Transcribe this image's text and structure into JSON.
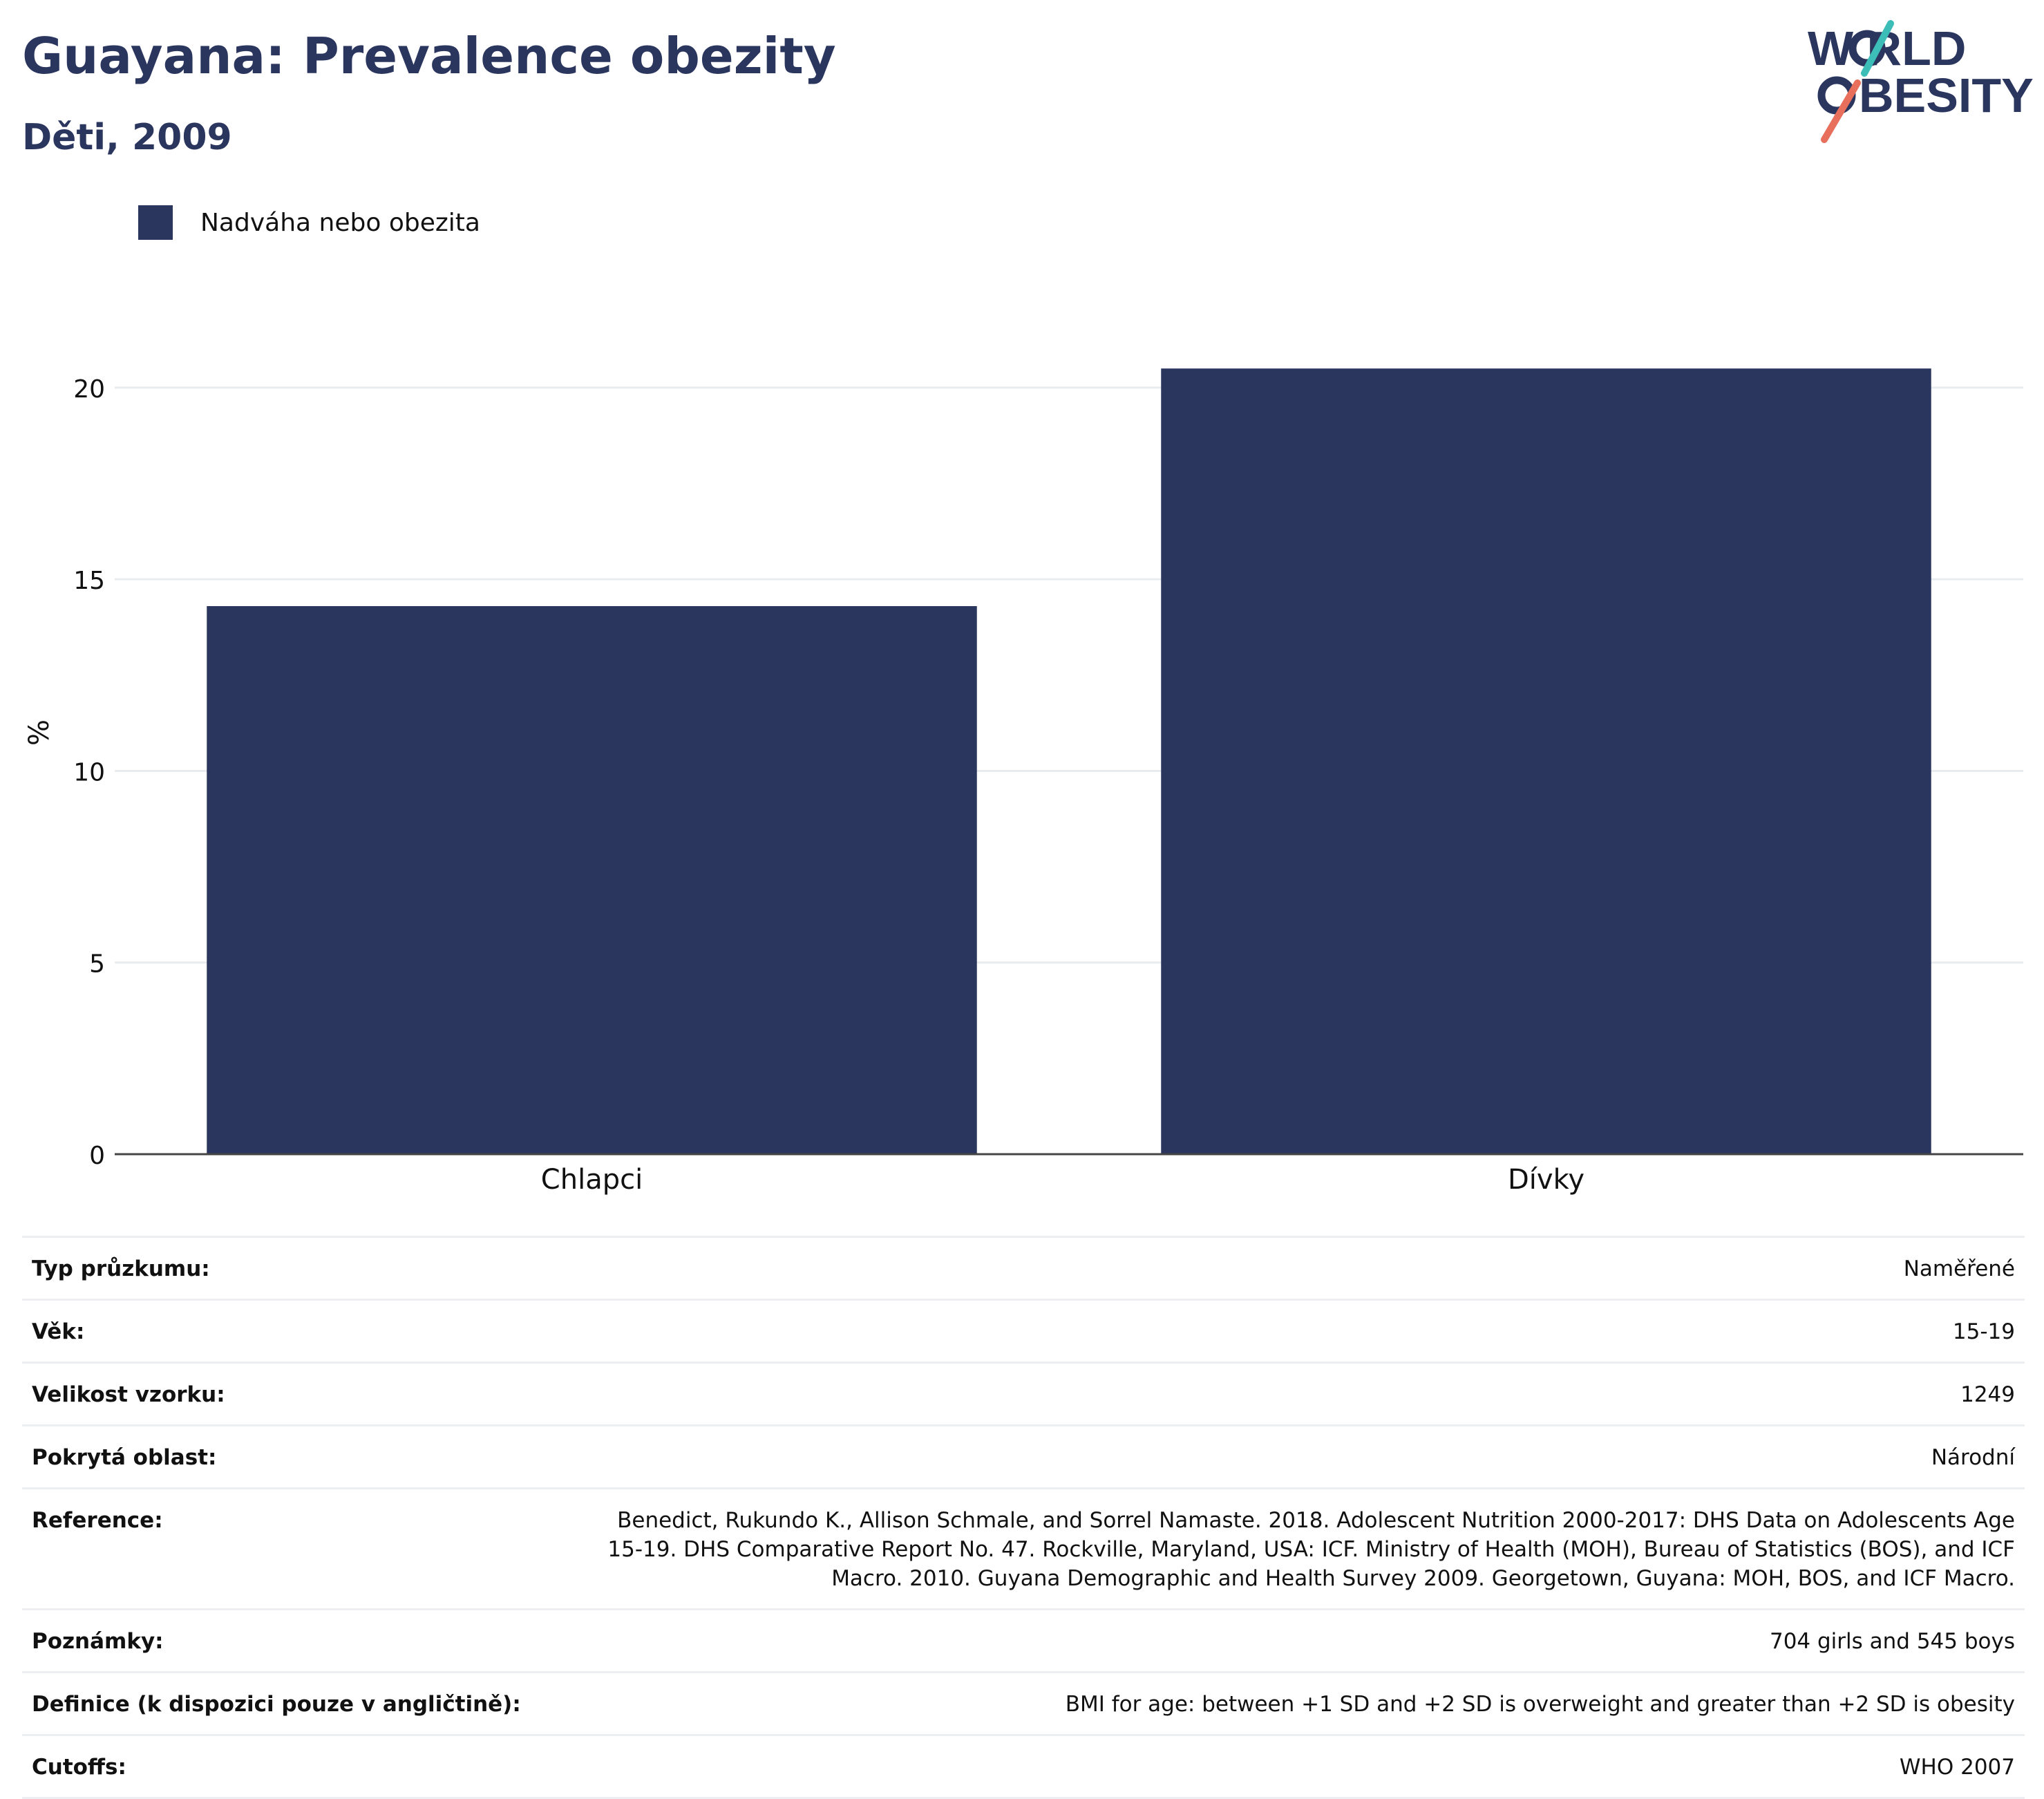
{
  "header": {
    "title": "Guayana: Prevalence obezity",
    "subtitle": "Děti, 2009"
  },
  "logo": {
    "line1": "W RLD",
    "line2": "BESITY",
    "colors": {
      "text": "#2b365f",
      "teal": "#3dbdb8",
      "coral": "#e76f5c"
    }
  },
  "colors": {
    "bar": "#2b365f",
    "grid": "#e9ecef",
    "axis": "#444444"
  },
  "chart_data": {
    "type": "bar",
    "categories": [
      "Chlapci",
      "Dívky"
    ],
    "series": [
      {
        "name": "Nadváha nebo obezita",
        "values": [
          14.3,
          20.5
        ],
        "color": "#2b365f"
      }
    ],
    "title": "",
    "xlabel": "",
    "ylabel": "%",
    "ylim": [
      0,
      22
    ],
    "yticks": [
      0,
      5,
      10,
      15,
      20
    ],
    "grid": true,
    "legend": "top-left"
  },
  "info": [
    {
      "key": "Typ průzkumu:",
      "value": "Naměřené"
    },
    {
      "key": "Věk:",
      "value": "15-19"
    },
    {
      "key": "Velikost vzorku:",
      "value": "1249"
    },
    {
      "key": "Pokrytá oblast:",
      "value": "Národní"
    },
    {
      "key": "Reference:",
      "value": "Benedict, Rukundo K., Allison Schmale, and Sorrel Namaste. 2018. Adolescent Nutrition 2000-2017: DHS Data on Adolescents Age 15-19. DHS Comparative Report No. 47. Rockville, Maryland, USA: ICF. Ministry of Health (MOH), Bureau of Statistics (BOS), and ICF Macro. 2010. Guyana Demographic and Health Survey 2009. Georgetown, Guyana: MOH, BOS, and ICF Macro."
    },
    {
      "key": "Poznámky:",
      "value": "704 girls and 545 boys"
    },
    {
      "key": "Definice (k dispozici pouze v angličtině):",
      "value": "BMI for age: between +1 SD and +2 SD is overweight and greater than +2 SD is obesity"
    },
    {
      "key": "Cutoffs:",
      "value": "WHO 2007"
    }
  ]
}
